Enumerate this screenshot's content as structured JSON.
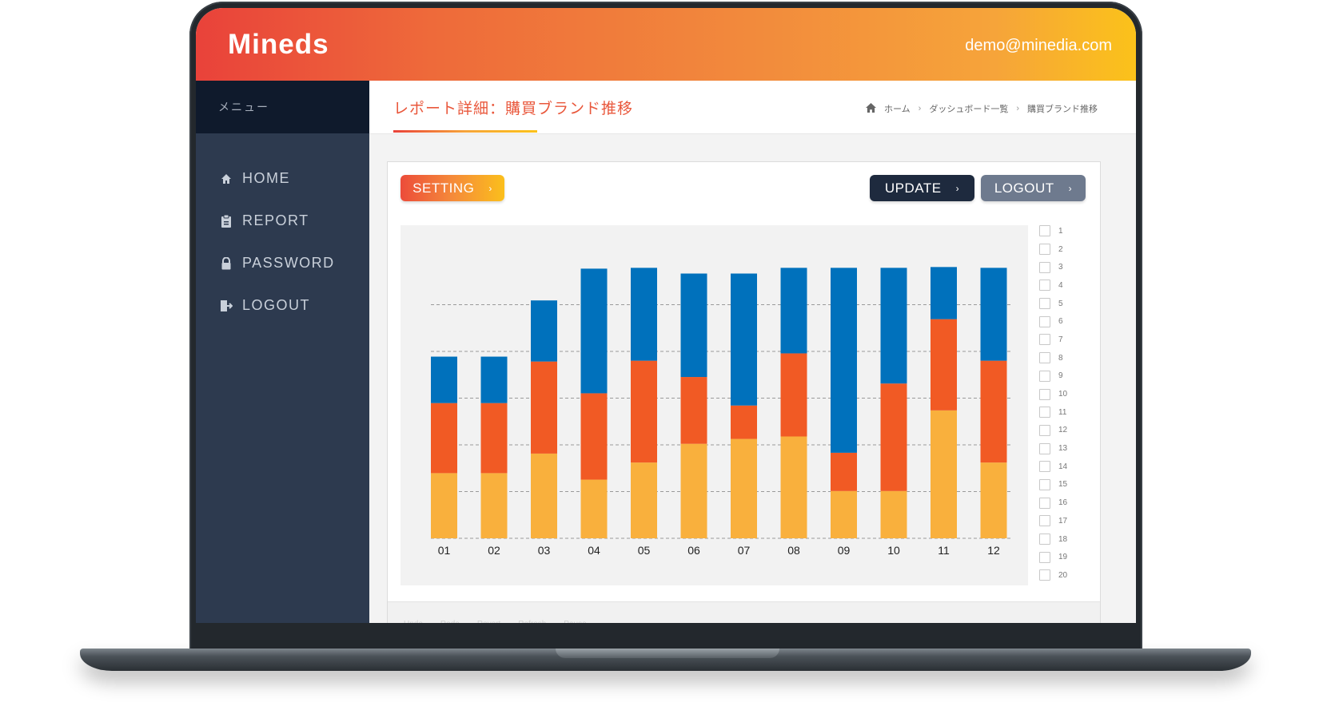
{
  "app": {
    "logo": "Mineds",
    "user_email": "demo@minedia.com"
  },
  "sidebar": {
    "menu_label": "メニュー",
    "items": [
      {
        "label": "HOME",
        "icon": "home-icon"
      },
      {
        "label": "REPORT",
        "icon": "clipboard-icon"
      },
      {
        "label": "PASSWORD",
        "icon": "lock-icon"
      },
      {
        "label": "LOGOUT",
        "icon": "logout-icon"
      }
    ]
  },
  "page": {
    "title": "レポート詳細：購買ブランド推移",
    "breadcrumb": [
      "ホーム",
      "ダッシュボード一覧",
      "購買ブランド推移"
    ]
  },
  "toolbar": {
    "setting_label": "SETTING",
    "update_label": "UPDATE",
    "logout_label": "LOGOUT"
  },
  "legend_items": [
    "1",
    "2",
    "3",
    "4",
    "5",
    "6",
    "7",
    "8",
    "9",
    "10",
    "11",
    "12",
    "13",
    "14",
    "15",
    "16",
    "17",
    "18",
    "19",
    "20"
  ],
  "footer_actions": [
    "Undo",
    "Redo",
    "Revert",
    "Refresh",
    "Pause"
  ],
  "colors": {
    "accent": "#e9573b",
    "series_bottom": "#f9b03d",
    "series_middle": "#f15a24",
    "series_top": "#0071bc"
  },
  "chart_data": {
    "type": "bar",
    "stacked": true,
    "categories": [
      "01",
      "02",
      "03",
      "04",
      "05",
      "06",
      "07",
      "08",
      "09",
      "10",
      "11",
      "12"
    ],
    "series": [
      {
        "values": [
          80,
          80,
          104,
          72,
          93,
          116,
          122,
          125,
          58,
          58,
          157,
          93
        ]
      },
      {
        "values": [
          86,
          86,
          113,
          106,
          125,
          82,
          41,
          102,
          47,
          132,
          112,
          125
        ]
      },
      {
        "values": [
          57,
          57,
          75,
          153,
          114,
          127,
          162,
          105,
          227,
          142,
          64,
          114
        ]
      }
    ],
    "ylim": [
      0,
      350
    ],
    "grid": true,
    "legend": "right"
  }
}
